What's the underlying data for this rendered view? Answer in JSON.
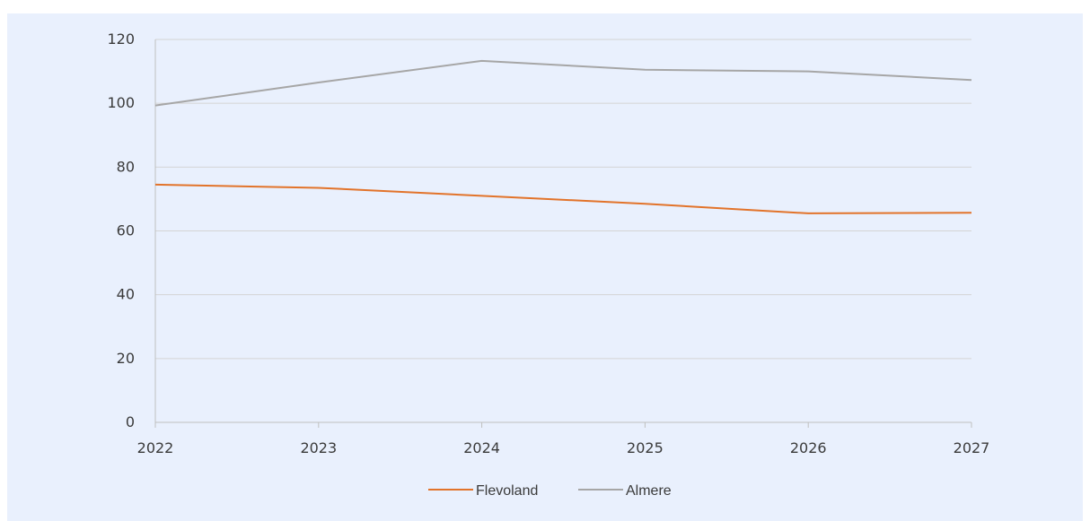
{
  "chart_data": {
    "type": "line",
    "title": "",
    "xlabel": "",
    "ylabel": "",
    "categories": [
      "2022",
      "2023",
      "2024",
      "2025",
      "2026",
      "2027"
    ],
    "ylim": [
      0,
      120
    ],
    "yticks": [
      0,
      20,
      40,
      60,
      80,
      100,
      120
    ],
    "grid": true,
    "legend_position": "bottom",
    "series": [
      {
        "name": "Flevoland",
        "color": "#e2732a",
        "values": [
          74.5,
          73.5,
          71.0,
          68.5,
          65.5,
          65.7
        ]
      },
      {
        "name": "Almere",
        "color": "#a6a6a6",
        "values": [
          99.3,
          106.5,
          113.3,
          110.5,
          110.0,
          107.3
        ]
      }
    ]
  }
}
